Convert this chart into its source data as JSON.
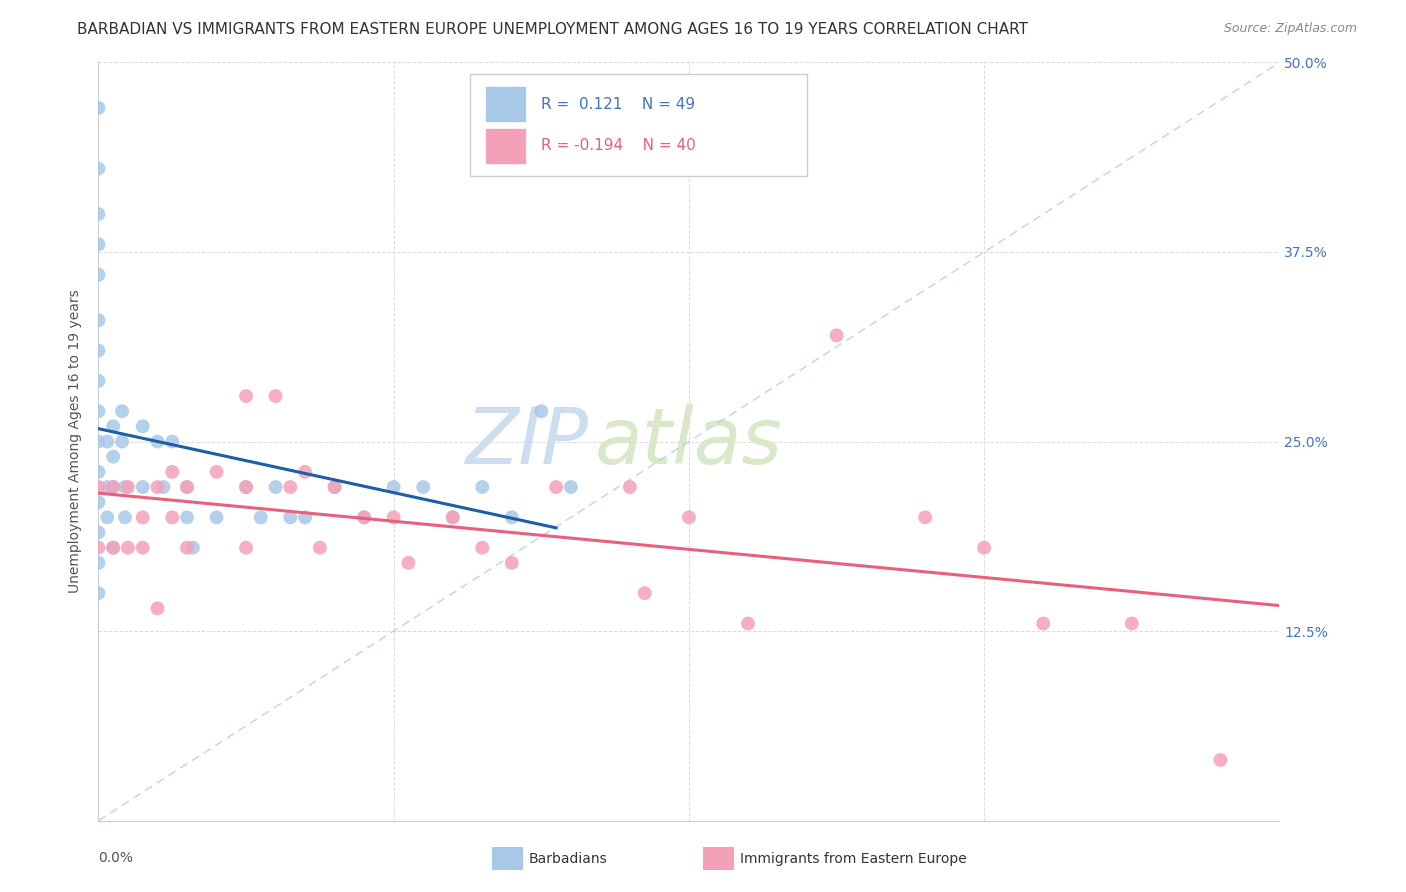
{
  "title": "BARBADIAN VS IMMIGRANTS FROM EASTERN EUROPE UNEMPLOYMENT AMONG AGES 16 TO 19 YEARS CORRELATION CHART",
  "source": "Source: ZipAtlas.com",
  "ylabel": "Unemployment Among Ages 16 to 19 years",
  "xmin": 0.0,
  "xmax": 0.4,
  "ymin": 0.0,
  "ymax": 0.5,
  "yticks": [
    0.0,
    0.125,
    0.25,
    0.375,
    0.5
  ],
  "ytick_labels_right": [
    "",
    "12.5%",
    "25.0%",
    "37.5%",
    "50.0%"
  ],
  "barbadians_x": [
    0.0,
    0.0,
    0.0,
    0.0,
    0.0,
    0.0,
    0.0,
    0.0,
    0.0,
    0.0,
    0.0,
    0.0,
    0.0,
    0.0,
    0.0,
    0.003,
    0.003,
    0.003,
    0.005,
    0.005,
    0.005,
    0.005,
    0.008,
    0.008,
    0.009,
    0.009,
    0.015,
    0.015,
    0.02,
    0.022,
    0.025,
    0.03,
    0.03,
    0.032,
    0.04,
    0.05,
    0.055,
    0.06,
    0.065,
    0.07,
    0.08,
    0.09,
    0.1,
    0.11,
    0.12,
    0.13,
    0.14,
    0.15,
    0.16
  ],
  "barbadians_y": [
    0.47,
    0.43,
    0.4,
    0.38,
    0.36,
    0.33,
    0.31,
    0.29,
    0.27,
    0.25,
    0.23,
    0.21,
    0.19,
    0.17,
    0.15,
    0.25,
    0.22,
    0.2,
    0.26,
    0.24,
    0.22,
    0.18,
    0.27,
    0.25,
    0.22,
    0.2,
    0.26,
    0.22,
    0.25,
    0.22,
    0.25,
    0.22,
    0.2,
    0.18,
    0.2,
    0.22,
    0.2,
    0.22,
    0.2,
    0.2,
    0.22,
    0.2,
    0.22,
    0.22,
    0.2,
    0.22,
    0.2,
    0.27,
    0.22
  ],
  "eastern_europe_x": [
    0.0,
    0.0,
    0.005,
    0.005,
    0.01,
    0.01,
    0.015,
    0.015,
    0.02,
    0.02,
    0.025,
    0.025,
    0.03,
    0.03,
    0.04,
    0.05,
    0.05,
    0.05,
    0.06,
    0.065,
    0.07,
    0.075,
    0.08,
    0.09,
    0.1,
    0.105,
    0.12,
    0.13,
    0.14,
    0.155,
    0.18,
    0.185,
    0.2,
    0.22,
    0.25,
    0.28,
    0.3,
    0.32,
    0.35,
    0.38
  ],
  "eastern_europe_y": [
    0.22,
    0.18,
    0.22,
    0.18,
    0.22,
    0.18,
    0.2,
    0.18,
    0.22,
    0.14,
    0.23,
    0.2,
    0.22,
    0.18,
    0.23,
    0.28,
    0.22,
    0.18,
    0.28,
    0.22,
    0.23,
    0.18,
    0.22,
    0.2,
    0.2,
    0.17,
    0.2,
    0.18,
    0.17,
    0.22,
    0.22,
    0.15,
    0.2,
    0.13,
    0.32,
    0.2,
    0.18,
    0.13,
    0.13,
    0.04
  ],
  "R_barbadian": 0.121,
  "N_barbadian": 49,
  "R_eastern": -0.194,
  "N_eastern": 40,
  "blue_scatter_color": "#a8c8e8",
  "pink_scatter_color": "#f4a0b8",
  "blue_line_color": "#1a5fa8",
  "pink_line_color": "#e8607a",
  "diag_line_color": "#b0c8e0",
  "watermark_zip_color": "#ccddf0",
  "watermark_atlas_color": "#d8e8c8",
  "grid_color": "#d8d8d8",
  "right_tick_color": "#4472c4",
  "background_color": "#ffffff",
  "title_fontsize": 11,
  "axis_label_fontsize": 10,
  "tick_fontsize": 10,
  "legend_fontsize": 11,
  "scatter_size": 100,
  "blue_trend_xmax": 0.155
}
